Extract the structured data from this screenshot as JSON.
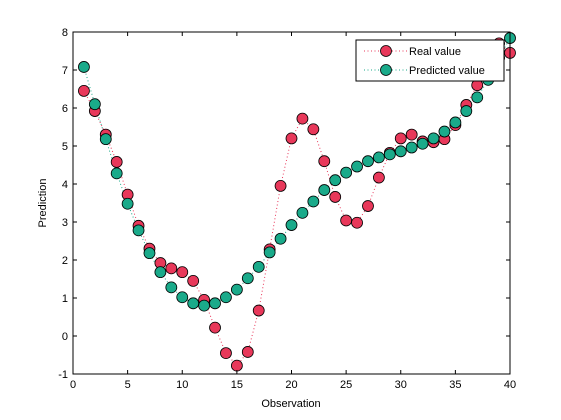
{
  "chart_data": {
    "type": "line",
    "xlabel": "Observation",
    "ylabel": "Prediction",
    "xlim": [
      0,
      40
    ],
    "ylim": [
      -1,
      8
    ],
    "xticks": [
      "0",
      "5",
      "10",
      "15",
      "20",
      "25",
      "30",
      "35",
      "40"
    ],
    "yticks": [
      "-1",
      "0",
      "1",
      "2",
      "3",
      "4",
      "5",
      "6",
      "7",
      "8"
    ],
    "grid": false,
    "legend_position": "top-right",
    "series": [
      {
        "name": "Real value",
        "color": "#e8385a",
        "line_style": "dotted",
        "marker": "circle",
        "x": [
          1,
          2,
          3,
          4,
          5,
          6,
          7,
          8,
          9,
          10,
          11,
          12,
          13,
          14,
          15,
          16,
          17,
          18,
          19,
          20,
          21,
          22,
          23,
          24,
          25,
          26,
          27,
          28,
          29,
          30,
          31,
          32,
          33,
          34,
          35,
          36,
          37,
          38,
          39,
          40
        ],
        "values": [
          6.45,
          5.92,
          5.3,
          4.58,
          3.72,
          2.9,
          2.3,
          1.92,
          1.78,
          1.68,
          1.45,
          0.95,
          0.22,
          -0.45,
          -0.78,
          -0.42,
          0.67,
          2.28,
          3.95,
          5.2,
          5.72,
          5.44,
          4.6,
          3.66,
          3.04,
          2.98,
          3.42,
          4.17,
          4.82,
          5.2,
          5.3,
          5.12,
          5.1,
          5.18,
          5.55,
          6.08,
          6.6,
          6.84,
          7.7,
          7.45
        ]
      },
      {
        "name": "Predicted value",
        "color": "#1aaa8a",
        "line_style": "dotted",
        "marker": "circle",
        "x": [
          1,
          2,
          3,
          4,
          5,
          6,
          7,
          8,
          9,
          10,
          11,
          12,
          13,
          14,
          15,
          16,
          17,
          18,
          19,
          20,
          21,
          22,
          23,
          24,
          25,
          26,
          27,
          28,
          29,
          30,
          31,
          32,
          33,
          34,
          35,
          36,
          37,
          38,
          39,
          40
        ],
        "values": [
          7.08,
          6.1,
          5.18,
          4.28,
          3.48,
          2.78,
          2.18,
          1.68,
          1.28,
          1.02,
          0.86,
          0.8,
          0.86,
          1.02,
          1.22,
          1.52,
          1.82,
          2.2,
          2.56,
          2.92,
          3.24,
          3.54,
          3.84,
          4.1,
          4.3,
          4.46,
          4.6,
          4.7,
          4.78,
          4.86,
          4.96,
          5.06,
          5.2,
          5.38,
          5.62,
          5.92,
          6.28,
          6.74,
          7.32,
          7.84
        ]
      }
    ]
  }
}
